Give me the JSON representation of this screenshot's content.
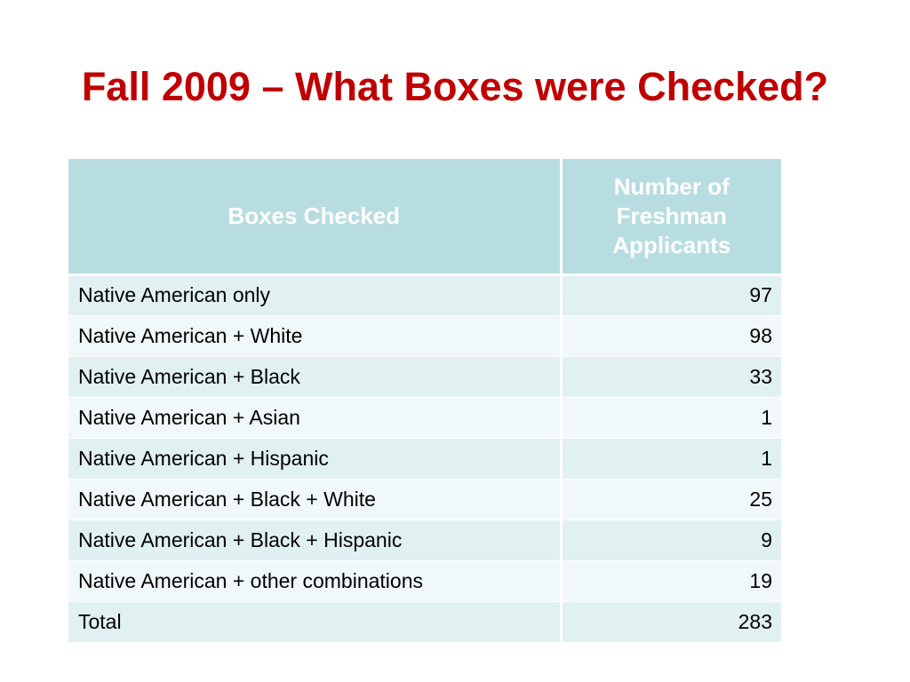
{
  "title": "Fall 2009 – What Boxes were Checked?",
  "table": {
    "headers": [
      "Boxes Checked",
      "Number of Freshman Applicants"
    ],
    "rows": [
      [
        "Native American only",
        "97"
      ],
      [
        "Native American + White",
        "98"
      ],
      [
        "Native American + Black",
        "33"
      ],
      [
        "Native American + Asian",
        "1"
      ],
      [
        "Native American + Hispanic",
        "1"
      ],
      [
        "Native American + Black + White",
        "25"
      ],
      [
        "Native American + Black + Hispanic",
        "9"
      ],
      [
        "Native American + other combinations",
        "19"
      ],
      [
        "Total",
        "283"
      ]
    ]
  },
  "colors": {
    "title": "#c00000",
    "header_bg": "#b7dde1",
    "row_odd_bg": "#e1f0f1",
    "row_even_bg": "#f1f8f9"
  }
}
